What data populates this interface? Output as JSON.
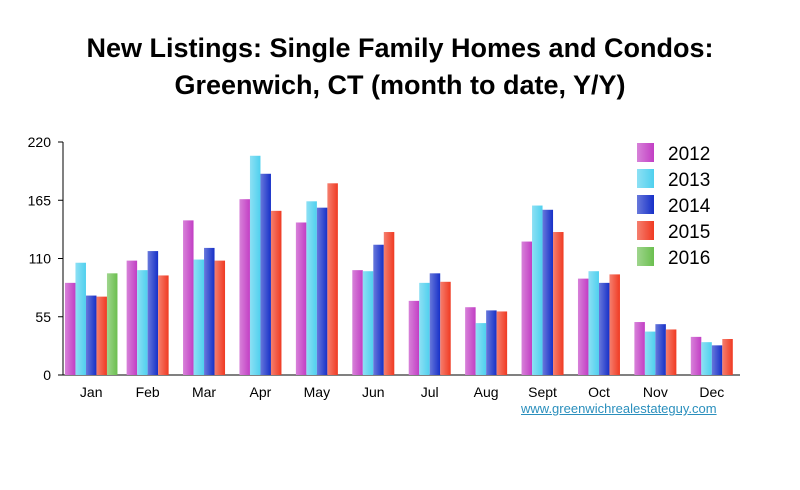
{
  "chart_data": {
    "type": "bar",
    "title_lines": [
      "New Listings: Single Family Homes and Condos:",
      "Greenwich, CT (month to date, Y/Y)"
    ],
    "xlabel": "",
    "ylabel": "",
    "ylim": [
      0,
      220
    ],
    "yticks": [
      0,
      55,
      110,
      165,
      220
    ],
    "grid": false,
    "legend_position": "right",
    "categories": [
      "Jan",
      "Feb",
      "Mar",
      "Apr",
      "May",
      "Jun",
      "Jul",
      "Aug",
      "Sept",
      "Oct",
      "Nov",
      "Dec"
    ],
    "series": [
      {
        "name": "2012",
        "color": "#c23ec4",
        "values": [
          87,
          108,
          146,
          166,
          144,
          99,
          70,
          64,
          126,
          91,
          50,
          36
        ]
      },
      {
        "name": "2013",
        "color": "#4fd0ee",
        "values": [
          106,
          99,
          109,
          207,
          164,
          98,
          87,
          49,
          160,
          98,
          41,
          31
        ]
      },
      {
        "name": "2014",
        "color": "#1630c8",
        "values": [
          75,
          117,
          120,
          190,
          158,
          123,
          96,
          61,
          156,
          87,
          48,
          28
        ]
      },
      {
        "name": "2015",
        "color": "#f03a22",
        "values": [
          74,
          94,
          108,
          155,
          181,
          135,
          88,
          60,
          135,
          95,
          43,
          34
        ]
      },
      {
        "name": "2016",
        "color": "#6bbf4f",
        "values": [
          96,
          null,
          null,
          null,
          null,
          null,
          null,
          null,
          null,
          null,
          null,
          null
        ]
      }
    ]
  },
  "source_link": "www.greenwichrealestateguy.com"
}
